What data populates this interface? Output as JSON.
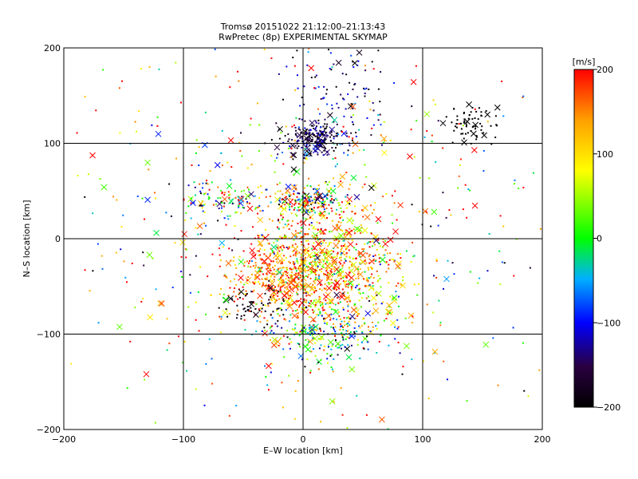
{
  "chart_data": {
    "type": "scatter",
    "title_line1": "Tromsø 20151022 21:12:00–21:13:43",
    "title_line2": "RwPretec (8p) EXPERIMENTAL SKYMAP",
    "xlabel": "E–W location [km]",
    "ylabel": "N–S location [km]",
    "xlim": [
      -200,
      200
    ],
    "ylim": [
      -200,
      200
    ],
    "xticks": [
      -200,
      -100,
      0,
      100,
      200
    ],
    "yticks": [
      -200,
      -100,
      0,
      100,
      200
    ],
    "xtick_labels": [
      "−200",
      "−100",
      "0",
      "100",
      "200"
    ],
    "ytick_labels": [
      "−200",
      "−100",
      "0",
      "100",
      "200"
    ],
    "grid": true,
    "colorbar": {
      "label": "[m/s]",
      "range": [
        -200,
        200
      ],
      "ticks": [
        200,
        100,
        0,
        -100,
        -200
      ],
      "tick_labels": [
        "200",
        "100",
        "0",
        "−100",
        "−200"
      ],
      "colormap": [
        "#000000",
        "#2a0040",
        "#0000ff",
        "#00b0ff",
        "#00ff00",
        "#ffff00",
        "#ffa000",
        "#ff0000"
      ]
    },
    "markers": [
      "dot",
      "x"
    ],
    "clusters": [
      {
        "x": 20,
        "y": -30,
        "sx": 30,
        "sy": 35,
        "n": 900,
        "v": 120,
        "sv": 80
      },
      {
        "x": -20,
        "y": -35,
        "sx": 25,
        "sy": 20,
        "n": 300,
        "v": 170,
        "sv": 40
      },
      {
        "x": 10,
        "y": 105,
        "sx": 12,
        "sy": 10,
        "n": 220,
        "v": -160,
        "sv": 40
      },
      {
        "x": 5,
        "y": 40,
        "sx": 15,
        "sy": 8,
        "n": 200,
        "v": 40,
        "sv": 150
      },
      {
        "x": 25,
        "y": -100,
        "sx": 25,
        "sy": 15,
        "n": 180,
        "v": -20,
        "sv": 100
      },
      {
        "x": -70,
        "y": 38,
        "sx": 15,
        "sy": 10,
        "n": 90,
        "v": 20,
        "sv": 150
      },
      {
        "x": 140,
        "y": 120,
        "sx": 12,
        "sy": 12,
        "n": 70,
        "v": -200,
        "sv": 5
      },
      {
        "x": -40,
        "y": -70,
        "sx": 12,
        "sy": 10,
        "n": 60,
        "v": -190,
        "sv": 15
      },
      {
        "x": 30,
        "y": 150,
        "sx": 20,
        "sy": 30,
        "n": 100,
        "v": -150,
        "sv": 60
      },
      {
        "x": 0,
        "y": 0,
        "sx": 110,
        "sy": 110,
        "n": 650,
        "v": 60,
        "sv": 140
      }
    ]
  }
}
